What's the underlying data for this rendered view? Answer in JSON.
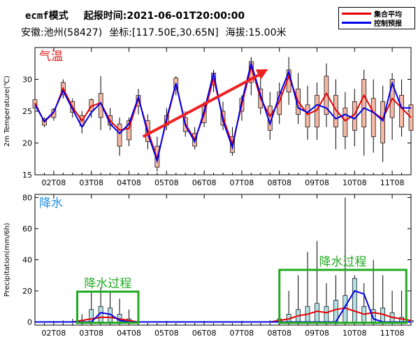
{
  "header": {
    "model": "ecmf模式",
    "start_label": "起报时间:",
    "start_time": "2021-06-01T20:00:00",
    "province": "安徽:",
    "station": "池州(58427)",
    "coord_label": "坐标:",
    "coord": "[117.50E,30.65N]",
    "alt_label": "海拔:",
    "alt": "15.00米"
  },
  "legend": {
    "items": [
      {
        "label": "集合平均",
        "color": "#e60000"
      },
      {
        "label": "控制预报",
        "color": "#0000e6"
      }
    ]
  },
  "colors": {
    "ens_mean": "#e60000",
    "control": "#0000e6",
    "temp_box": "#f4b8a6",
    "precip_box": "#b5e0e6",
    "annot_box": "#22aa22",
    "arrow": "#ee2222"
  },
  "chart_data": [
    {
      "type": "line",
      "panel": "temperature",
      "ylabel": "2m Temperature(℃)",
      "ylim": [
        15,
        35
      ],
      "yticks": [
        15,
        20,
        25,
        30
      ],
      "xlim": [
        0,
        40
      ],
      "xticks": [
        2,
        6,
        10,
        14,
        18,
        22,
        26,
        30,
        34,
        38
      ],
      "xticklabels": [
        "02T08",
        "03T08",
        "04T08",
        "05T08",
        "06T08",
        "07T08",
        "08T08",
        "09T08",
        "10T08",
        "11T08"
      ],
      "annotation": "气温",
      "series": [
        {
          "name": "集合平均",
          "x": [
            0,
            1,
            2,
            3,
            4,
            5,
            6,
            7,
            8,
            9,
            10,
            11,
            12,
            13,
            14,
            15,
            16,
            17,
            18,
            19,
            20,
            21,
            22,
            23,
            24,
            25,
            26,
            27,
            28,
            29,
            30,
            31,
            32,
            33,
            34,
            35,
            36,
            37,
            38,
            39,
            40
          ],
          "values": [
            26.3,
            23.3,
            24.8,
            28.6,
            25.6,
            23.5,
            25.8,
            26.3,
            23.5,
            22.0,
            22.3,
            27.0,
            22.0,
            17.5,
            23.5,
            29.3,
            23.0,
            20.5,
            24.5,
            30.2,
            24.0,
            19.8,
            26.0,
            32.0,
            27.0,
            24.2,
            26.5,
            30.5,
            26.5,
            24.5,
            25.2,
            27.8,
            25.2,
            23.5,
            24.5,
            27.5,
            24.8,
            23.8,
            27.0,
            25.5,
            24.0
          ]
        },
        {
          "name": "控制预报",
          "x": [
            0,
            1,
            2,
            3,
            4,
            5,
            6,
            7,
            8,
            9,
            10,
            11,
            12,
            13,
            14,
            15,
            16,
            17,
            18,
            19,
            20,
            21,
            22,
            23,
            24,
            25,
            26,
            27,
            28,
            29,
            30,
            31,
            32,
            33,
            34,
            35,
            36,
            37,
            38,
            39,
            40
          ],
          "values": [
            26.0,
            23.4,
            24.9,
            28.2,
            25.3,
            22.5,
            24.8,
            26.3,
            23.0,
            21.5,
            23.0,
            27.2,
            21.5,
            17.2,
            23.8,
            29.4,
            22.8,
            20.2,
            25.0,
            31.0,
            23.5,
            19.3,
            26.5,
            32.5,
            27.5,
            23.0,
            27.5,
            31.2,
            25.5,
            24.8,
            26.0,
            25.5,
            23.8,
            24.5,
            23.8,
            25.5,
            24.8,
            23.5,
            29.4,
            25.5,
            25.5
          ]
        }
      ],
      "box_min": [
        25.5,
        22.8,
        24.0,
        27.6,
        24.8,
        22.7,
        25.0,
        24.0,
        22.8,
        19.5,
        20.5,
        25.8,
        20.2,
        16.2,
        22.8,
        28.5,
        21.8,
        19.5,
        23.2,
        29.2,
        22.8,
        18.5,
        25.0,
        29.5,
        25.5,
        22.0,
        24.5,
        28.0,
        24.5,
        22.5,
        22.5,
        24.5,
        22.5,
        21.0,
        22.0,
        22.5,
        21.0,
        20.0,
        24.0,
        22.5,
        22.0
      ],
      "box_max": [
        26.8,
        23.8,
        25.3,
        29.5,
        26.5,
        24.3,
        26.8,
        27.8,
        24.3,
        23.0,
        23.5,
        27.5,
        23.5,
        19.5,
        24.3,
        30.2,
        24.0,
        21.5,
        25.8,
        31.0,
        25.0,
        21.0,
        27.0,
        32.8,
        28.5,
        25.8,
        28.0,
        31.5,
        28.5,
        26.0,
        27.5,
        30.5,
        27.5,
        25.5,
        26.5,
        30.0,
        27.0,
        26.5,
        30.0,
        27.5,
        26.0
      ],
      "whisker_min": [
        25.0,
        22.5,
        23.5,
        27.0,
        24.0,
        21.5,
        24.0,
        22.0,
        22.0,
        18.0,
        19.5,
        24.5,
        19.0,
        15.5,
        22.0,
        27.5,
        21.0,
        19.0,
        22.5,
        28.0,
        22.0,
        18.0,
        23.5,
        27.5,
        24.5,
        20.5,
        23.0,
        26.0,
        23.0,
        20.5,
        20.5,
        22.5,
        19.0,
        19.0,
        19.5,
        18.0,
        18.5,
        17.0,
        20.5,
        21.0,
        21.0
      ],
      "whisker_max": [
        27.0,
        24.0,
        25.5,
        30.0,
        27.0,
        25.0,
        27.0,
        30.5,
        25.5,
        24.0,
        24.0,
        28.5,
        24.5,
        21.0,
        25.5,
        30.5,
        25.0,
        22.5,
        26.5,
        31.5,
        26.5,
        22.5,
        27.5,
        33.5,
        30.5,
        28.0,
        29.5,
        33.5,
        31.0,
        29.0,
        29.5,
        32.5,
        30.0,
        28.0,
        28.5,
        31.5,
        30.0,
        29.0,
        31.0,
        30.0,
        27.5
      ]
    },
    {
      "type": "line",
      "panel": "precipitation",
      "ylabel": "Precipitation(mm/6h)",
      "ylim": [
        -2,
        82
      ],
      "yticks": [
        0,
        20,
        40,
        60,
        80
      ],
      "xlim": [
        0,
        40
      ],
      "xticks": [
        2,
        6,
        10,
        14,
        18,
        22,
        26,
        30,
        34,
        38
      ],
      "xticklabels": [
        "02T08",
        "03T08",
        "04T08",
        "05T08",
        "06T08",
        "07T08",
        "08T08",
        "09T08",
        "10T08",
        "11T08"
      ],
      "annotation": "降水",
      "regions": [
        {
          "label": "降水过程",
          "x0": 4.5,
          "x1": 11,
          "y0": -0.5,
          "y1": 19.5
        },
        {
          "label": "降水过程",
          "x0": 26,
          "x1": 39.5,
          "y0": -0.5,
          "y1": 33.5
        }
      ],
      "series": [
        {
          "name": "集合平均",
          "x": [
            0,
            1,
            2,
            3,
            4,
            5,
            6,
            7,
            8,
            9,
            10,
            11,
            12,
            13,
            14,
            15,
            16,
            17,
            18,
            19,
            20,
            21,
            22,
            23,
            24,
            25,
            26,
            27,
            28,
            29,
            30,
            31,
            32,
            33,
            34,
            35,
            36,
            37,
            38,
            39,
            40
          ],
          "values": [
            0,
            0,
            0,
            0,
            0,
            1,
            2,
            3,
            3,
            2,
            1,
            0,
            0,
            0,
            0,
            0,
            0,
            0,
            0,
            0,
            0,
            0,
            0,
            0,
            0,
            0,
            1,
            2,
            4,
            5,
            7,
            6,
            8,
            9,
            7,
            5,
            6,
            5,
            3,
            2,
            1
          ]
        },
        {
          "name": "控制预报",
          "x": [
            0,
            1,
            2,
            3,
            4,
            5,
            6,
            7,
            8,
            9,
            10,
            11,
            12,
            13,
            14,
            15,
            16,
            17,
            18,
            19,
            20,
            21,
            22,
            23,
            24,
            25,
            26,
            27,
            28,
            29,
            30,
            31,
            32,
            33,
            34,
            35,
            36,
            37,
            38,
            39,
            40
          ],
          "values": [
            0,
            0,
            0,
            0,
            0,
            0,
            0,
            6,
            5,
            1,
            0,
            0,
            0,
            0,
            0,
            0,
            0,
            0,
            0,
            0,
            0,
            0,
            0,
            0,
            0,
            0,
            0,
            0,
            0,
            0,
            0,
            0,
            0,
            10,
            20,
            18,
            2,
            0,
            0,
            0,
            0
          ]
        }
      ],
      "box_min": [
        0,
        0,
        0,
        0,
        0,
        0,
        0,
        0,
        0,
        0,
        0,
        0,
        0,
        0,
        0,
        0,
        0,
        0,
        0,
        0,
        0,
        0,
        0,
        0,
        0,
        0,
        0,
        0,
        0,
        0,
        0,
        0,
        0,
        0,
        0,
        0,
        0,
        0,
        0,
        0,
        0
      ],
      "box_max": [
        0,
        0,
        0,
        0,
        0,
        1,
        8,
        10,
        9,
        5,
        2,
        0,
        0,
        0,
        0,
        0,
        0,
        0,
        0,
        0,
        0,
        0,
        0,
        0,
        0,
        0,
        2,
        5,
        8,
        10,
        12,
        10,
        14,
        17,
        28,
        10,
        8,
        9,
        6,
        3,
        1
      ],
      "whisker_max": [
        0,
        0,
        0,
        1,
        2,
        5,
        20,
        22,
        20,
        15,
        8,
        0,
        0,
        0,
        0,
        0,
        0,
        0,
        0,
        0,
        0,
        0,
        0,
        0,
        0,
        1,
        8,
        20,
        30,
        45,
        52,
        25,
        30,
        80,
        30,
        25,
        40,
        30,
        20,
        20,
        47
      ]
    }
  ]
}
